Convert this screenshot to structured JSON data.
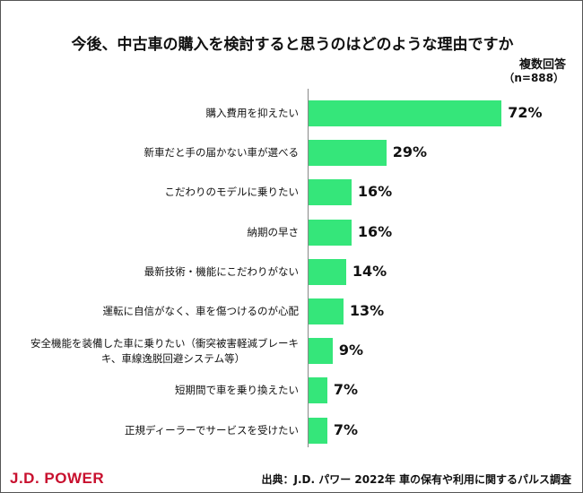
{
  "chart_data": {
    "type": "bar",
    "orientation": "horizontal",
    "title": "今後、中古車の購入を検討すると思うのはどのような理由ですか",
    "subtitle": "複数回答",
    "sample_size": "（n=888）",
    "categories": [
      "購入費用を抑えたい",
      "新車だと手の届かない車が選べる",
      "こだわりのモデルに乗りたい",
      "納期の早さ",
      "最新技術・機能にこだわりがない",
      "運転に自信がなく、車を傷つけるのが心配",
      "安全機能を装備した車に乗りたい（衝突被害軽減ブレーキ、車線逸脱回避システム等）",
      "短期間で車を乗り換えたい",
      "正規ディーラーでサービスを受けたい"
    ],
    "category_lines": [
      [
        "購入費用を抑えたい"
      ],
      [
        "新車だと手の届かない車が選べる"
      ],
      [
        "こだわりのモデルに乗りたい"
      ],
      [
        "納期の早さ"
      ],
      [
        "最新技術・機能にこだわりがない"
      ],
      [
        "運転に自信がなく、車を傷つけるのが心配"
      ],
      [
        "安全機能を装備した車に乗りたい（衝突被害軽減ブレーキ",
        "キ、車線逸脱回避システム等）"
      ],
      [
        "短期間で車を乗り換えたい"
      ],
      [
        "正規ディーラーでサービスを受けたい"
      ]
    ],
    "values": [
      72,
      29,
      16,
      16,
      14,
      13,
      9,
      7,
      7
    ],
    "labels": [
      "72%",
      "29%",
      "16%",
      "16%",
      "14%",
      "13%",
      "9%",
      "7%",
      "7%"
    ],
    "unit": "%",
    "xlim": [
      0,
      100
    ],
    "grid": false,
    "bar_color": "#35e67a"
  },
  "footer": {
    "logo": "J.D. POWER",
    "source": "出典：J.D. パワー 2022年 車の保有や利用に関するパルス調査"
  },
  "colors": {
    "logo": "#c8102e",
    "bar": "#35e67a"
  }
}
